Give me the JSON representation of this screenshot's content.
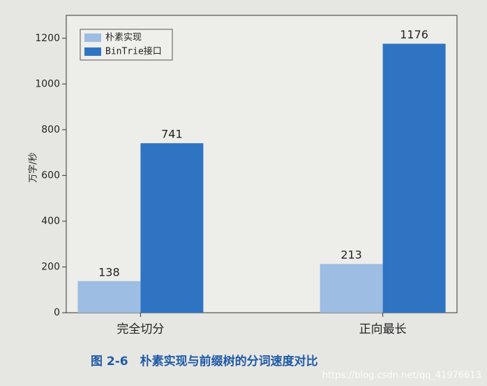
{
  "chart_data": {
    "type": "bar",
    "y_label": "万字/秒",
    "caption": "图 2-6　朴素实现与前缀树的分词速度对比",
    "watermark": "https://blog.csdn.net/qq_41976613",
    "categories": [
      "完全切分",
      "正向最长"
    ],
    "series": [
      {
        "name": "朴素实现",
        "color": "#9dbde2",
        "values": [
          138,
          213
        ]
      },
      {
        "name": "BinTrie接口",
        "color": "#2f74c3",
        "values": [
          741,
          1176
        ]
      }
    ],
    "ylim": [
      0,
      1300
    ],
    "yticks": [
      0,
      200,
      400,
      600,
      800,
      1000,
      1200
    ],
    "legend": "upper-left"
  }
}
